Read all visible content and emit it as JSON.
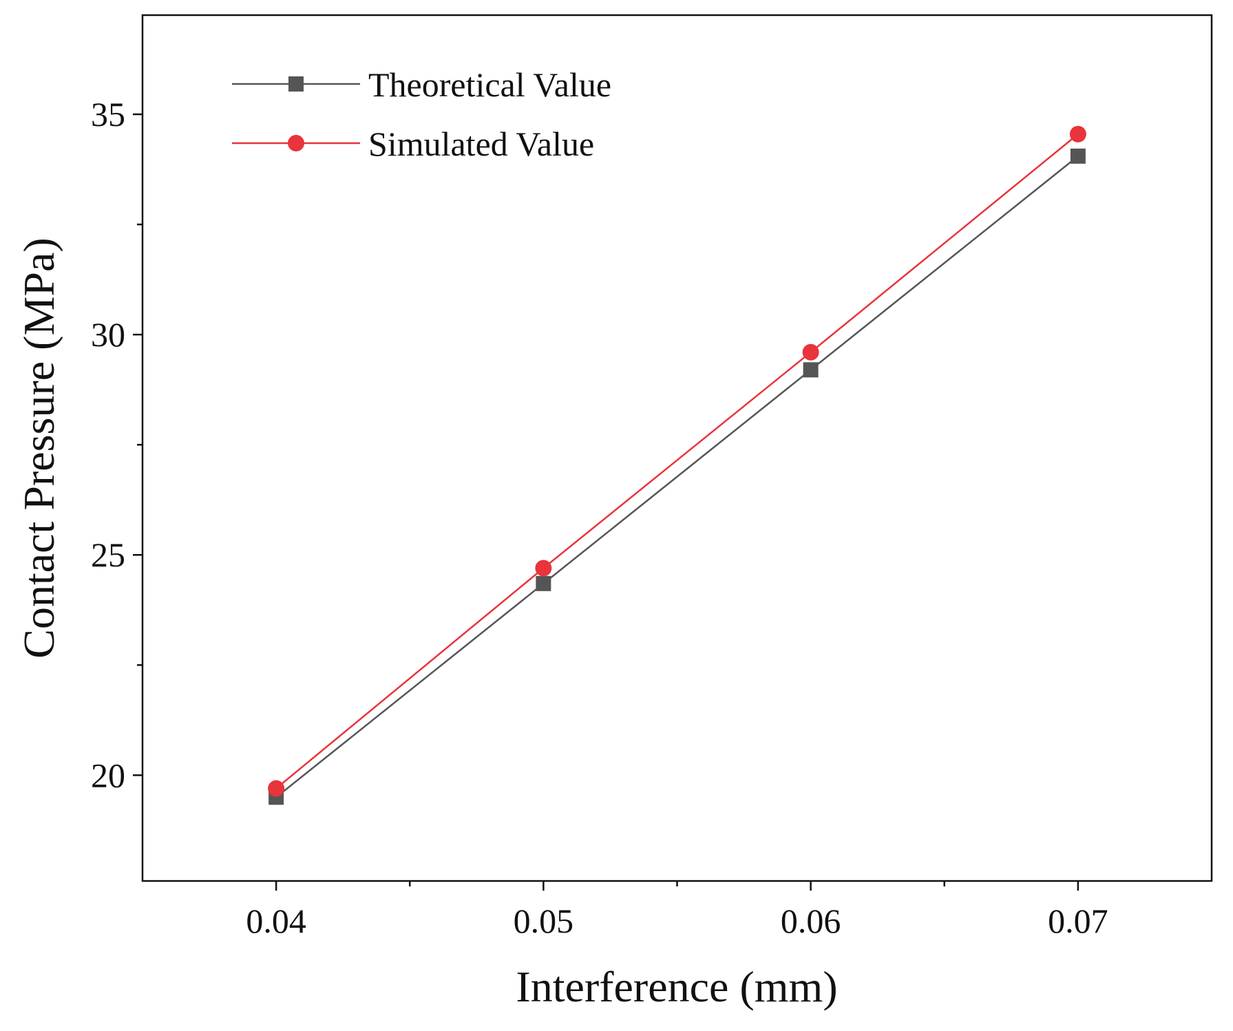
{
  "chart_data": {
    "type": "line",
    "title": "",
    "xlabel": "Interference (mm)",
    "ylabel": "Contact Pressure (MPa)",
    "xlim": [
      0.035,
      0.075
    ],
    "ylim": [
      17.6,
      37.25
    ],
    "x_ticks": [
      0.04,
      0.05,
      0.06,
      0.07
    ],
    "x_tick_labels": [
      "0.04",
      "0.05",
      "0.06",
      "0.07"
    ],
    "x_minor_ticks": [
      0.045,
      0.055,
      0.065
    ],
    "y_ticks": [
      20,
      25,
      30,
      35
    ],
    "y_tick_labels": [
      "20",
      "25",
      "30",
      "35"
    ],
    "grid": false,
    "legend_position": "top-left",
    "x": [
      0.04,
      0.05,
      0.06,
      0.07
    ],
    "series": [
      {
        "name": "Theoretical Value",
        "values": [
          19.5,
          24.35,
          29.2,
          34.05
        ],
        "color": "#555555",
        "marker": "square"
      },
      {
        "name": "Simulated Value",
        "values": [
          19.7,
          24.7,
          29.6,
          34.55
        ],
        "color": "#e8343a",
        "marker": "circle"
      }
    ]
  }
}
